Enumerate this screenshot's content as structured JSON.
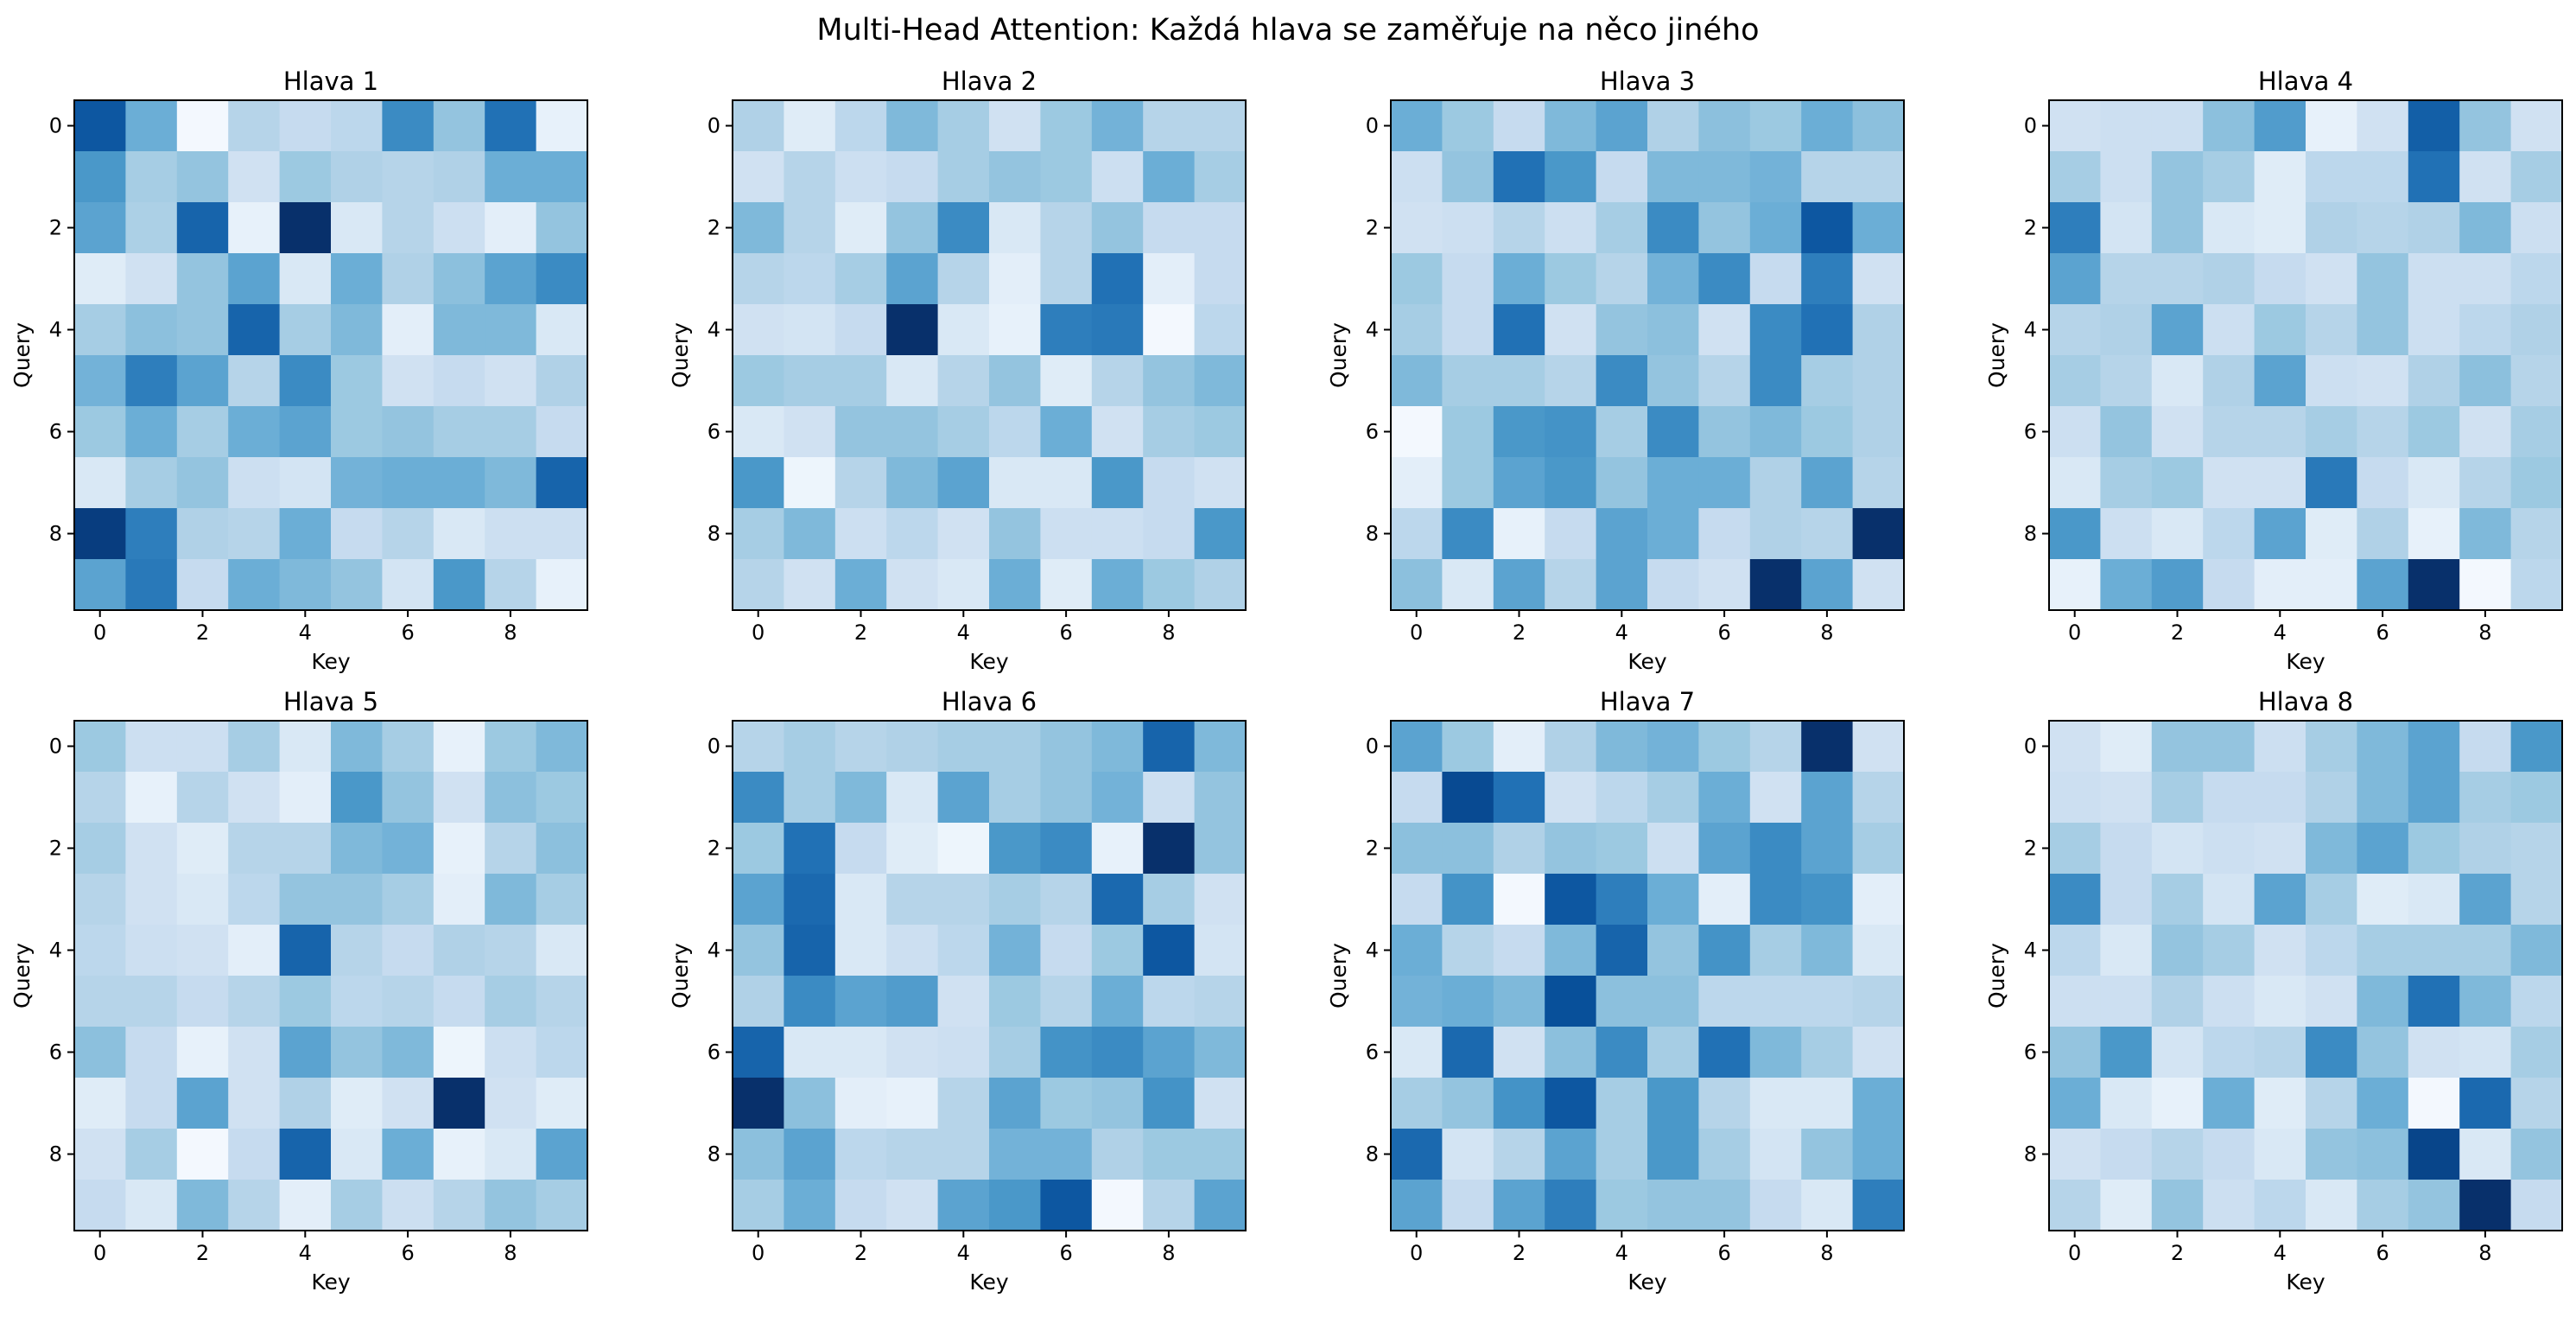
{
  "figure": {
    "suptitle": "Multi-Head Attention: Každá hlava se zaměřuje na něco jiného"
  },
  "chart_data": [
    {
      "type": "heatmap",
      "title": "Hlava 1",
      "xlabel": "Key",
      "ylabel": "Query",
      "xticks": [
        "0",
        "2",
        "4",
        "6",
        "8"
      ],
      "yticks": [
        "0",
        "2",
        "4",
        "6",
        "8"
      ],
      "colormap": "Blues",
      "values": [
        [
          0.85,
          0.5,
          0.02,
          0.3,
          0.25,
          0.28,
          0.65,
          0.4,
          0.75,
          0.08
        ],
        [
          0.6,
          0.35,
          0.4,
          0.2,
          0.38,
          0.32,
          0.3,
          0.32,
          0.5,
          0.5
        ],
        [
          0.55,
          0.33,
          0.8,
          0.08,
          1.0,
          0.15,
          0.3,
          0.22,
          0.1,
          0.4
        ],
        [
          0.12,
          0.2,
          0.4,
          0.55,
          0.15,
          0.5,
          0.32,
          0.42,
          0.55,
          0.65
        ],
        [
          0.35,
          0.42,
          0.4,
          0.8,
          0.35,
          0.45,
          0.1,
          0.45,
          0.45,
          0.15
        ],
        [
          0.48,
          0.7,
          0.55,
          0.3,
          0.65,
          0.38,
          0.2,
          0.25,
          0.2,
          0.32
        ],
        [
          0.38,
          0.5,
          0.35,
          0.5,
          0.55,
          0.38,
          0.4,
          0.35,
          0.35,
          0.25
        ],
        [
          0.15,
          0.35,
          0.4,
          0.22,
          0.18,
          0.48,
          0.5,
          0.5,
          0.45,
          0.8
        ],
        [
          0.95,
          0.7,
          0.32,
          0.3,
          0.5,
          0.25,
          0.3,
          0.15,
          0.22,
          0.22
        ],
        [
          0.55,
          0.72,
          0.25,
          0.5,
          0.45,
          0.4,
          0.18,
          0.6,
          0.3,
          0.08
        ]
      ]
    },
    {
      "type": "heatmap",
      "title": "Hlava 2",
      "xlabel": "Key",
      "ylabel": "Query",
      "xticks": [
        "0",
        "2",
        "4",
        "6",
        "8"
      ],
      "yticks": [
        "0",
        "2",
        "4",
        "6",
        "8"
      ],
      "colormap": "Blues",
      "values": [
        [
          0.32,
          0.12,
          0.28,
          0.45,
          0.35,
          0.2,
          0.38,
          0.48,
          0.3,
          0.3
        ],
        [
          0.2,
          0.3,
          0.22,
          0.25,
          0.35,
          0.4,
          0.38,
          0.22,
          0.5,
          0.35
        ],
        [
          0.45,
          0.3,
          0.12,
          0.4,
          0.65,
          0.15,
          0.3,
          0.4,
          0.25,
          0.25
        ],
        [
          0.3,
          0.28,
          0.35,
          0.55,
          0.3,
          0.1,
          0.3,
          0.75,
          0.1,
          0.25
        ],
        [
          0.2,
          0.18,
          0.25,
          1.0,
          0.15,
          0.08,
          0.7,
          0.72,
          0.02,
          0.28
        ],
        [
          0.38,
          0.35,
          0.35,
          0.15,
          0.3,
          0.4,
          0.12,
          0.3,
          0.4,
          0.45
        ],
        [
          0.15,
          0.2,
          0.4,
          0.4,
          0.35,
          0.28,
          0.5,
          0.2,
          0.35,
          0.38
        ],
        [
          0.6,
          0.05,
          0.3,
          0.45,
          0.55,
          0.15,
          0.15,
          0.6,
          0.25,
          0.2
        ],
        [
          0.35,
          0.45,
          0.22,
          0.28,
          0.2,
          0.4,
          0.22,
          0.22,
          0.25,
          0.6
        ],
        [
          0.3,
          0.2,
          0.5,
          0.2,
          0.15,
          0.5,
          0.12,
          0.5,
          0.38,
          0.32
        ]
      ]
    },
    {
      "type": "heatmap",
      "title": "Hlava 3",
      "xlabel": "Key",
      "ylabel": "Query",
      "xticks": [
        "0",
        "2",
        "4",
        "6",
        "8"
      ],
      "yticks": [
        "0",
        "2",
        "4",
        "6",
        "8"
      ],
      "colormap": "Blues",
      "values": [
        [
          0.5,
          0.38,
          0.25,
          0.45,
          0.55,
          0.32,
          0.42,
          0.38,
          0.5,
          0.42
        ],
        [
          0.22,
          0.4,
          0.75,
          0.6,
          0.25,
          0.45,
          0.45,
          0.48,
          0.3,
          0.3
        ],
        [
          0.2,
          0.22,
          0.3,
          0.22,
          0.35,
          0.65,
          0.4,
          0.5,
          0.85,
          0.5
        ],
        [
          0.38,
          0.25,
          0.5,
          0.38,
          0.3,
          0.48,
          0.65,
          0.25,
          0.7,
          0.2
        ],
        [
          0.35,
          0.25,
          0.75,
          0.2,
          0.4,
          0.42,
          0.2,
          0.65,
          0.75,
          0.32
        ],
        [
          0.45,
          0.35,
          0.35,
          0.3,
          0.65,
          0.4,
          0.3,
          0.65,
          0.35,
          0.32
        ],
        [
          0.02,
          0.38,
          0.6,
          0.62,
          0.35,
          0.65,
          0.4,
          0.45,
          0.38,
          0.32
        ],
        [
          0.1,
          0.38,
          0.55,
          0.6,
          0.4,
          0.5,
          0.5,
          0.32,
          0.55,
          0.3
        ],
        [
          0.28,
          0.65,
          0.08,
          0.25,
          0.55,
          0.5,
          0.25,
          0.32,
          0.3,
          1.0
        ],
        [
          0.42,
          0.15,
          0.55,
          0.3,
          0.55,
          0.25,
          0.2,
          1.0,
          0.55,
          0.2
        ]
      ]
    },
    {
      "type": "heatmap",
      "title": "Hlava 4",
      "xlabel": "Key",
      "ylabel": "Query",
      "xticks": [
        "0",
        "2",
        "4",
        "6",
        "8"
      ],
      "yticks": [
        "0",
        "2",
        "4",
        "6",
        "8"
      ],
      "colormap": "Blues",
      "values": [
        [
          0.2,
          0.22,
          0.22,
          0.42,
          0.58,
          0.08,
          0.2,
          0.82,
          0.4,
          0.2
        ],
        [
          0.35,
          0.22,
          0.4,
          0.35,
          0.12,
          0.28,
          0.28,
          0.75,
          0.2,
          0.35
        ],
        [
          0.7,
          0.18,
          0.4,
          0.15,
          0.12,
          0.32,
          0.3,
          0.32,
          0.45,
          0.22
        ],
        [
          0.55,
          0.3,
          0.3,
          0.32,
          0.25,
          0.2,
          0.4,
          0.22,
          0.22,
          0.28
        ],
        [
          0.3,
          0.32,
          0.55,
          0.22,
          0.38,
          0.3,
          0.4,
          0.22,
          0.28,
          0.32
        ],
        [
          0.35,
          0.3,
          0.15,
          0.32,
          0.55,
          0.22,
          0.2,
          0.32,
          0.42,
          0.3
        ],
        [
          0.22,
          0.4,
          0.2,
          0.3,
          0.3,
          0.35,
          0.3,
          0.38,
          0.2,
          0.35
        ],
        [
          0.15,
          0.35,
          0.38,
          0.2,
          0.2,
          0.72,
          0.25,
          0.15,
          0.3,
          0.38
        ],
        [
          0.6,
          0.22,
          0.15,
          0.28,
          0.55,
          0.12,
          0.32,
          0.08,
          0.45,
          0.3
        ],
        [
          0.08,
          0.5,
          0.58,
          0.25,
          0.1,
          0.1,
          0.55,
          1.0,
          0.02,
          0.28
        ]
      ]
    },
    {
      "type": "heatmap",
      "title": "Hlava 5",
      "xlabel": "Key",
      "ylabel": "Query",
      "xticks": [
        "0",
        "2",
        "4",
        "6",
        "8"
      ],
      "yticks": [
        "0",
        "2",
        "4",
        "6",
        "8"
      ],
      "colormap": "Blues",
      "values": [
        [
          0.38,
          0.22,
          0.22,
          0.35,
          0.15,
          0.45,
          0.35,
          0.08,
          0.38,
          0.45
        ],
        [
          0.3,
          0.08,
          0.3,
          0.2,
          0.1,
          0.6,
          0.4,
          0.2,
          0.42,
          0.38
        ],
        [
          0.35,
          0.2,
          0.12,
          0.3,
          0.3,
          0.45,
          0.48,
          0.08,
          0.3,
          0.42
        ],
        [
          0.3,
          0.2,
          0.15,
          0.28,
          0.4,
          0.4,
          0.35,
          0.1,
          0.45,
          0.35
        ],
        [
          0.28,
          0.22,
          0.2,
          0.1,
          0.8,
          0.3,
          0.25,
          0.32,
          0.3,
          0.15
        ],
        [
          0.3,
          0.3,
          0.25,
          0.3,
          0.38,
          0.28,
          0.3,
          0.25,
          0.35,
          0.3
        ],
        [
          0.42,
          0.25,
          0.08,
          0.2,
          0.55,
          0.4,
          0.45,
          0.05,
          0.22,
          0.28
        ],
        [
          0.12,
          0.25,
          0.55,
          0.2,
          0.32,
          0.12,
          0.2,
          1.0,
          0.2,
          0.12
        ],
        [
          0.2,
          0.35,
          0.02,
          0.25,
          0.8,
          0.15,
          0.5,
          0.08,
          0.15,
          0.55
        ],
        [
          0.25,
          0.15,
          0.45,
          0.3,
          0.1,
          0.35,
          0.22,
          0.3,
          0.4,
          0.35
        ]
      ]
    },
    {
      "type": "heatmap",
      "title": "Hlava 6",
      "xlabel": "Key",
      "ylabel": "Query",
      "xticks": [
        "0",
        "2",
        "4",
        "6",
        "8"
      ],
      "yticks": [
        "0",
        "2",
        "4",
        "6",
        "8"
      ],
      "colormap": "Blues",
      "values": [
        [
          0.3,
          0.35,
          0.3,
          0.32,
          0.35,
          0.35,
          0.4,
          0.45,
          0.8,
          0.45
        ],
        [
          0.65,
          0.35,
          0.45,
          0.15,
          0.55,
          0.35,
          0.4,
          0.48,
          0.22,
          0.4
        ],
        [
          0.38,
          0.75,
          0.25,
          0.12,
          0.05,
          0.6,
          0.65,
          0.08,
          1.0,
          0.4
        ],
        [
          0.55,
          0.78,
          0.15,
          0.3,
          0.3,
          0.35,
          0.3,
          0.78,
          0.35,
          0.2
        ],
        [
          0.4,
          0.8,
          0.15,
          0.22,
          0.28,
          0.48,
          0.25,
          0.38,
          0.85,
          0.18
        ],
        [
          0.32,
          0.65,
          0.55,
          0.58,
          0.2,
          0.38,
          0.3,
          0.5,
          0.28,
          0.3
        ],
        [
          0.8,
          0.15,
          0.15,
          0.2,
          0.22,
          0.35,
          0.62,
          0.65,
          0.55,
          0.45
        ],
        [
          1.0,
          0.42,
          0.1,
          0.08,
          0.3,
          0.55,
          0.38,
          0.4,
          0.62,
          0.2
        ],
        [
          0.42,
          0.55,
          0.28,
          0.3,
          0.3,
          0.48,
          0.48,
          0.32,
          0.38,
          0.38
        ],
        [
          0.35,
          0.5,
          0.25,
          0.2,
          0.55,
          0.6,
          0.85,
          0.02,
          0.3,
          0.55
        ]
      ]
    },
    {
      "type": "heatmap",
      "title": "Hlava 7",
      "xlabel": "Key",
      "ylabel": "Query",
      "xticks": [
        "0",
        "2",
        "4",
        "6",
        "8"
      ],
      "yticks": [
        "0",
        "2",
        "4",
        "6",
        "8"
      ],
      "colormap": "Blues",
      "values": [
        [
          0.55,
          0.38,
          0.1,
          0.32,
          0.45,
          0.48,
          0.38,
          0.3,
          1.0,
          0.2
        ],
        [
          0.25,
          0.9,
          0.75,
          0.2,
          0.28,
          0.35,
          0.5,
          0.2,
          0.55,
          0.3
        ],
        [
          0.42,
          0.42,
          0.32,
          0.4,
          0.38,
          0.22,
          0.55,
          0.65,
          0.55,
          0.35
        ],
        [
          0.25,
          0.62,
          0.02,
          0.85,
          0.7,
          0.5,
          0.1,
          0.65,
          0.62,
          0.1
        ],
        [
          0.5,
          0.3,
          0.25,
          0.45,
          0.8,
          0.4,
          0.62,
          0.35,
          0.45,
          0.15
        ],
        [
          0.48,
          0.5,
          0.45,
          0.88,
          0.42,
          0.42,
          0.28,
          0.28,
          0.28,
          0.3
        ],
        [
          0.15,
          0.78,
          0.2,
          0.42,
          0.65,
          0.35,
          0.75,
          0.45,
          0.35,
          0.2
        ],
        [
          0.35,
          0.4,
          0.62,
          0.85,
          0.35,
          0.6,
          0.3,
          0.15,
          0.15,
          0.5
        ],
        [
          0.78,
          0.18,
          0.3,
          0.55,
          0.35,
          0.6,
          0.35,
          0.18,
          0.4,
          0.5
        ],
        [
          0.55,
          0.25,
          0.55,
          0.7,
          0.38,
          0.4,
          0.4,
          0.25,
          0.15,
          0.7
        ]
      ]
    },
    {
      "type": "heatmap",
      "title": "Hlava 8",
      "xlabel": "Key",
      "ylabel": "Query",
      "xticks": [
        "0",
        "2",
        "4",
        "6",
        "8"
      ],
      "yticks": [
        "0",
        "2",
        "4",
        "6",
        "8"
      ],
      "colormap": "Blues",
      "values": [
        [
          0.2,
          0.12,
          0.4,
          0.4,
          0.22,
          0.35,
          0.45,
          0.55,
          0.25,
          0.6
        ],
        [
          0.22,
          0.2,
          0.35,
          0.25,
          0.25,
          0.32,
          0.45,
          0.55,
          0.35,
          0.38
        ],
        [
          0.35,
          0.25,
          0.18,
          0.22,
          0.2,
          0.45,
          0.55,
          0.38,
          0.32,
          0.3
        ],
        [
          0.65,
          0.25,
          0.35,
          0.18,
          0.55,
          0.35,
          0.12,
          0.15,
          0.55,
          0.3
        ],
        [
          0.28,
          0.15,
          0.4,
          0.35,
          0.2,
          0.28,
          0.35,
          0.35,
          0.35,
          0.45
        ],
        [
          0.22,
          0.22,
          0.32,
          0.22,
          0.15,
          0.2,
          0.45,
          0.75,
          0.45,
          0.28
        ],
        [
          0.4,
          0.6,
          0.18,
          0.28,
          0.3,
          0.65,
          0.4,
          0.2,
          0.18,
          0.35
        ],
        [
          0.5,
          0.15,
          0.08,
          0.5,
          0.12,
          0.3,
          0.5,
          0.02,
          0.78,
          0.3
        ],
        [
          0.2,
          0.25,
          0.3,
          0.25,
          0.15,
          0.4,
          0.42,
          0.92,
          0.15,
          0.4
        ],
        [
          0.3,
          0.12,
          0.4,
          0.22,
          0.28,
          0.15,
          0.35,
          0.4,
          1.0,
          0.25
        ]
      ]
    }
  ]
}
